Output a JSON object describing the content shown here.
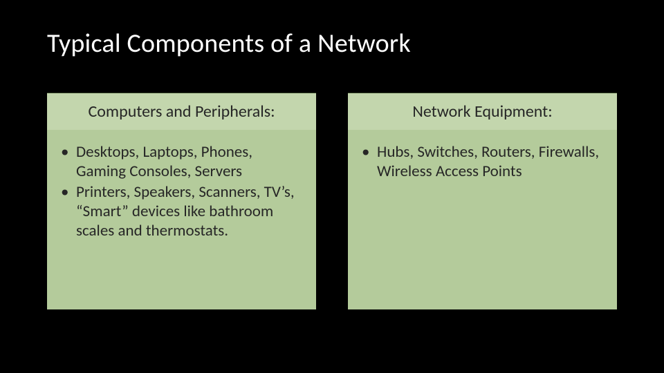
{
  "slide": {
    "title": "Typical Components of a Network",
    "background_color": "#000000",
    "title_color": "#ffffff",
    "title_fontsize": 38,
    "columns": [
      {
        "header": "Computers and Peripherals:",
        "header_bg": "#c3d6ad",
        "body_bg": "#b4cb9b",
        "text_color": "#262626",
        "items": [
          "Desktops, Laptops, Phones, Gaming Consoles, Servers",
          "Printers, Speakers, Scanners, TV’s, “Smart” devices like bathroom scales and thermostats."
        ]
      },
      {
        "header": "Network Equipment:",
        "header_bg": "#c3d6ad",
        "body_bg": "#b4cb9b",
        "text_color": "#262626",
        "items": [
          "Hubs, Switches, Routers, Firewalls, Wireless Access Points"
        ]
      }
    ],
    "body_fontsize": 23,
    "header_fontsize": 24,
    "column_gap": 46,
    "card_body_min_height": 260
  }
}
